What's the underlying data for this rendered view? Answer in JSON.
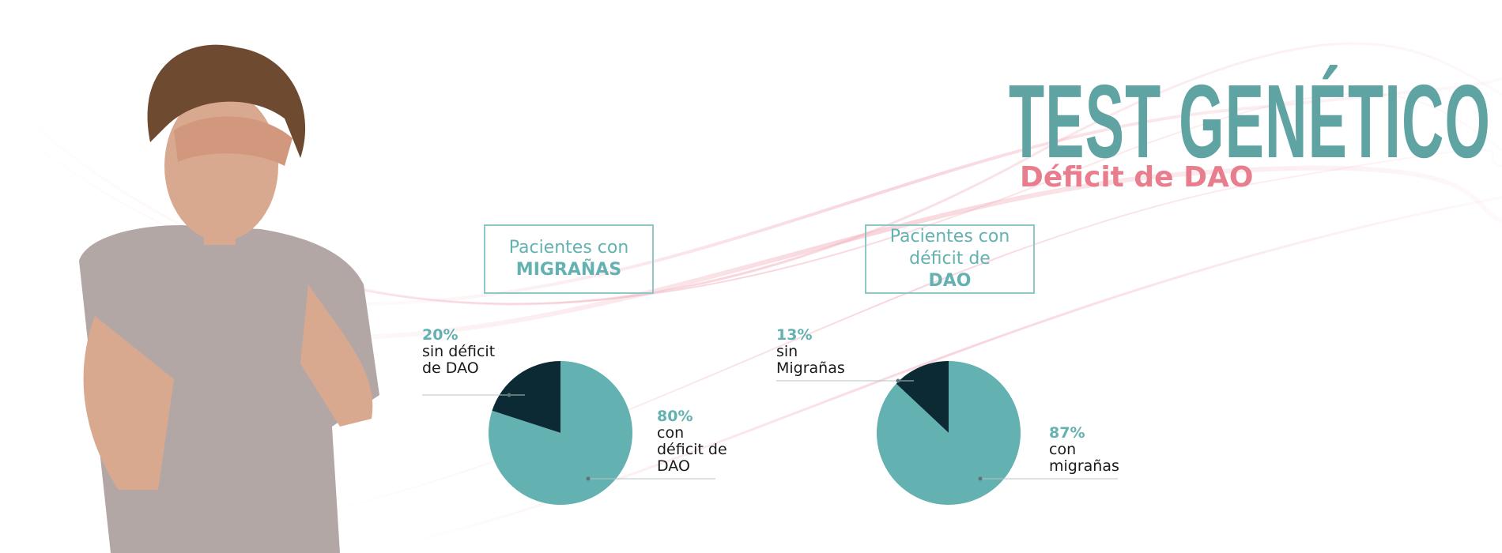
{
  "header": {
    "title": "TEST GENÉTICO",
    "subtitle": "Déficit de DAO"
  },
  "chart_data": [
    {
      "type": "pie",
      "title": "Pacientes con",
      "title_emphasis": "MIGRAÑAS",
      "categories": [
        "sin déficit de DAO",
        "con déficit de DAO"
      ],
      "values": [
        20,
        80
      ],
      "value_labels": [
        "20%",
        "80%"
      ],
      "colors": [
        "#0b2a33",
        "#63b1b1"
      ]
    },
    {
      "type": "pie",
      "title": "Pacientes con déficit de",
      "title_emphasis": "DAO",
      "categories": [
        "sin Migrañas",
        "con migrañas"
      ],
      "values": [
        13,
        87
      ],
      "value_labels": [
        "13%",
        "87%"
      ],
      "colors": [
        "#0b2a33",
        "#63b1b1"
      ]
    }
  ]
}
